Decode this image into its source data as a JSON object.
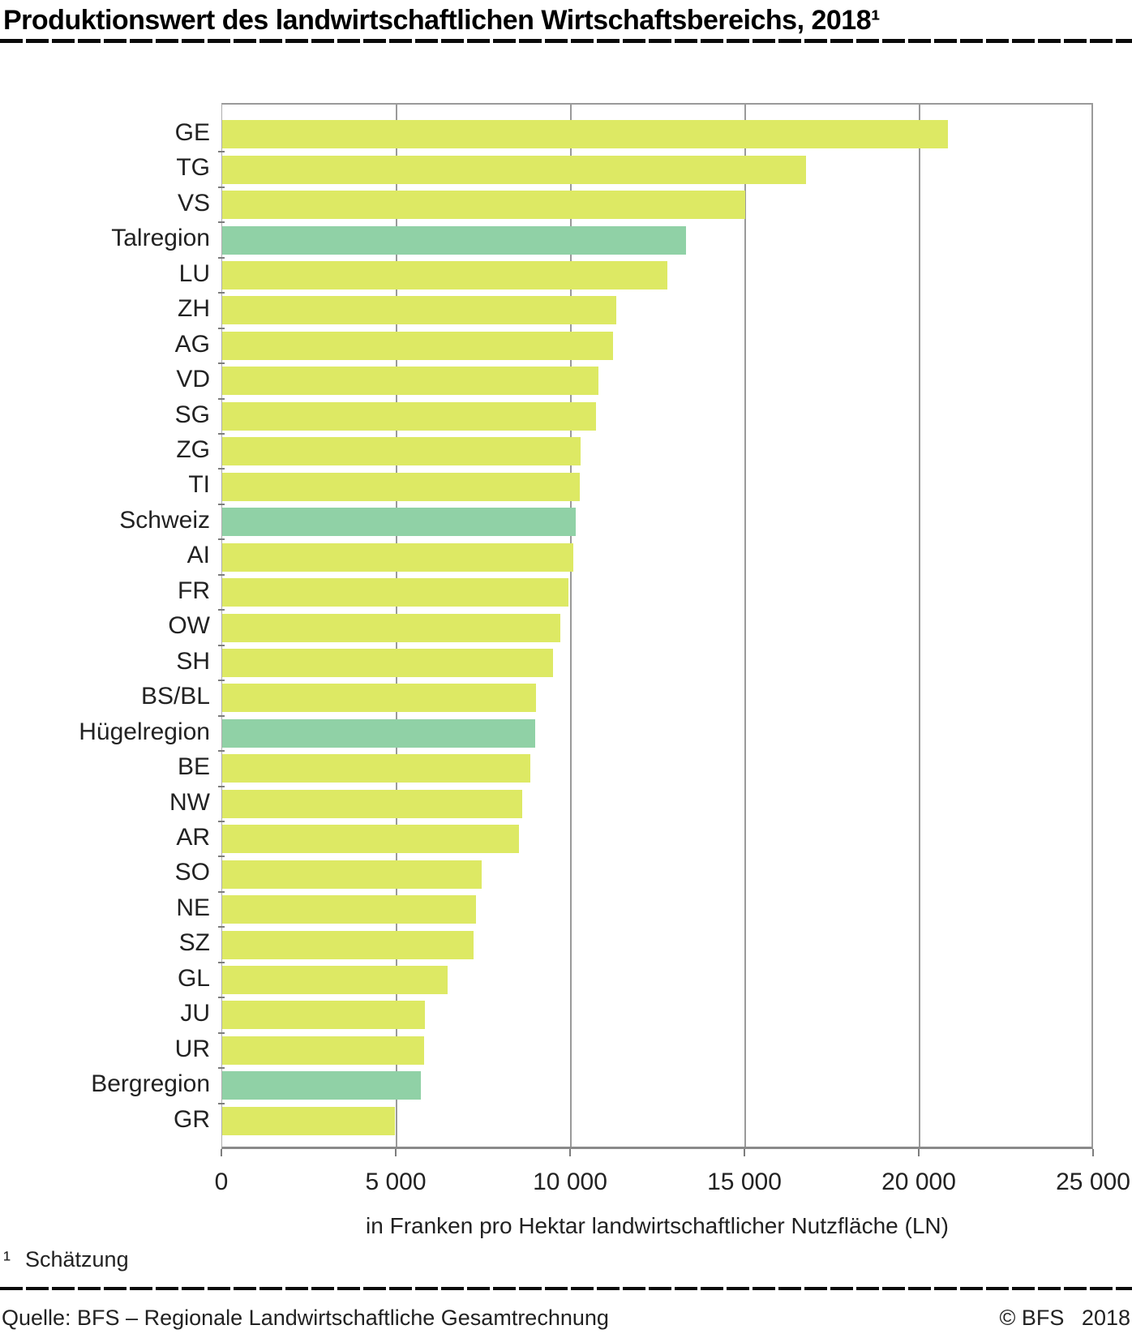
{
  "header": {
    "title": "Produktionswert des landwirtschaftlichen Wirtschaftsbereichs, 2018¹"
  },
  "chart_data": {
    "type": "bar",
    "orientation": "horizontal",
    "title": "Produktionswert des landwirtschaftlichen Wirtschaftsbereichs, 2018¹",
    "categories": [
      "GE",
      "TG",
      "VS",
      "Talregion",
      "LU",
      "ZH",
      "AG",
      "VD",
      "SG",
      "ZG",
      "TI",
      "Schweiz",
      "AI",
      "FR",
      "OW",
      "SH",
      "BS/BL",
      "Hügelregion",
      "BE",
      "NW",
      "AR",
      "SO",
      "NE",
      "SZ",
      "GL",
      "JU",
      "UR",
      "Bergregion",
      "GR"
    ],
    "values": [
      20820,
      16750,
      15010,
      13310,
      12760,
      11310,
      11210,
      10780,
      10730,
      10290,
      10250,
      10130,
      10080,
      9920,
      9700,
      9480,
      8990,
      8980,
      8840,
      8610,
      8520,
      7440,
      7270,
      7210,
      6470,
      5810,
      5790,
      5700,
      4960
    ],
    "highlight_categories": [
      "Talregion",
      "Schweiz",
      "Hügelregion",
      "Bergregion"
    ],
    "colors": {
      "canton_bar": "#dde964",
      "region_bar": "#90d1a6"
    },
    "xlabel": "in Franken pro Hektar landwirtschaftlicher Nutzfläche (LN)",
    "xlim": [
      0,
      25000
    ],
    "x_ticks": [
      0,
      5000,
      10000,
      15000,
      20000,
      25000
    ],
    "x_tick_labels": [
      "0",
      "5 000",
      "10 000",
      "15 000",
      "20 000",
      "25 000"
    ],
    "grid": "vertical gridlines at x ticks, behind bars",
    "legend": "none"
  },
  "footnote": {
    "marker": "¹",
    "text": "Schätzung"
  },
  "footer": {
    "source": "Quelle: BFS – Regionale Landwirtschaftliche Gesamtrechnung",
    "copyright": "© BFS",
    "year": "2018"
  }
}
